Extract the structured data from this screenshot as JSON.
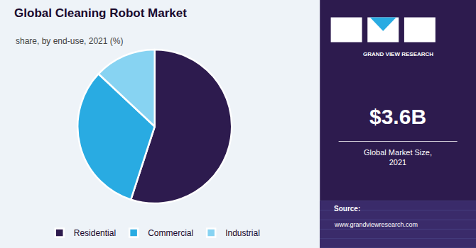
{
  "chart_data": {
    "type": "pie",
    "title": "Global Cleaning Robot Market",
    "subtitle": "share, by end-use, 2021 (%)",
    "categories": [
      "Residential",
      "Commercial",
      "Industrial"
    ],
    "values": [
      55,
      32,
      13
    ],
    "colors": [
      "#2d1b4e",
      "#29abe2",
      "#87d3f2"
    ],
    "legend": "bottom",
    "annotations": [
      "GRAND VIEW RESEARCH",
      "$3.6B",
      "Global Market Size,\n2021",
      "Source:",
      "www.grandviewresearch.com"
    ]
  }
}
